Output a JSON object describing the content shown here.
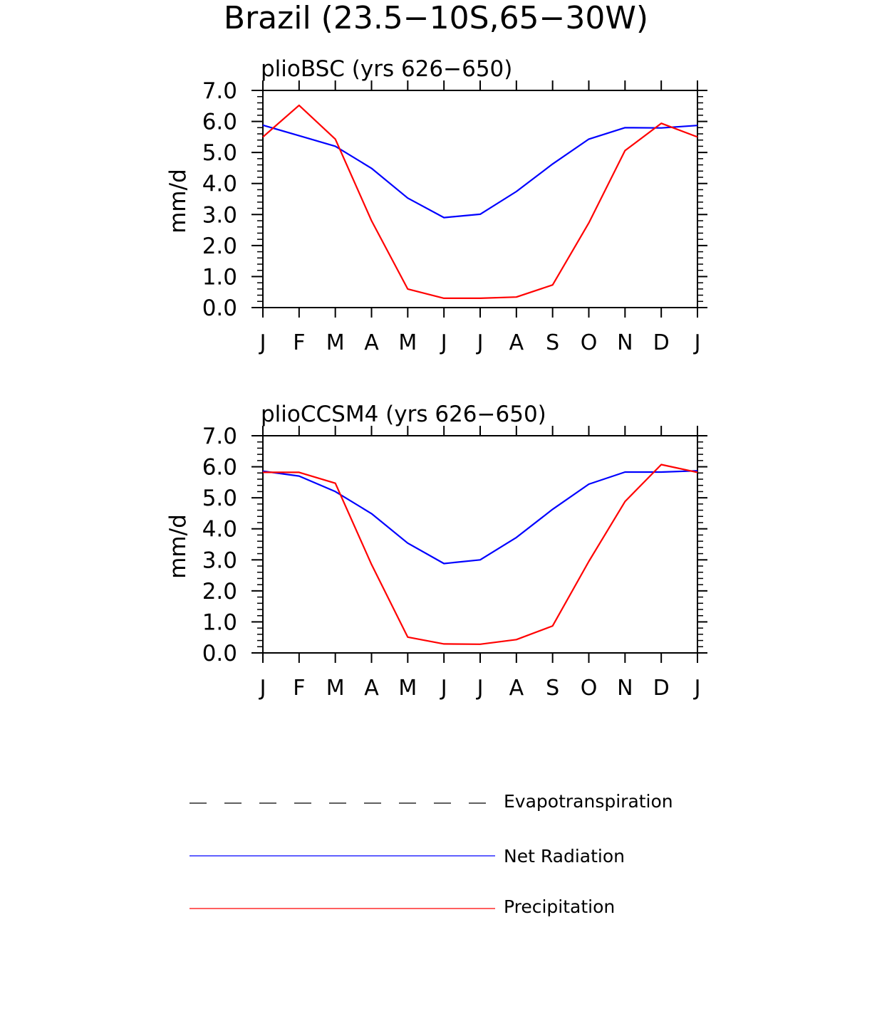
{
  "page_title": "Brazil (23.5−10S,65−30W)",
  "colors": {
    "net_radiation": "#0000ff",
    "precipitation": "#ff0000",
    "evapotranspiration": "#000000"
  },
  "legend": {
    "items": [
      {
        "label": "Evapotranspiration",
        "style": "dashed",
        "color": "#000000"
      },
      {
        "label": "Net Radiation",
        "style": "solid",
        "color": "#0000ff"
      },
      {
        "label": "Precipitation",
        "style": "solid",
        "color": "#ff0000"
      }
    ]
  },
  "chart_data": [
    {
      "type": "line",
      "title": "plioBSC (yrs 626−650)",
      "ylabel": "mm/d",
      "xlabel": "",
      "categories": [
        "J",
        "F",
        "M",
        "A",
        "M",
        "J",
        "J",
        "A",
        "S",
        "O",
        "N",
        "D",
        "J"
      ],
      "ylim": [
        0,
        7
      ],
      "ytick_labels": [
        "0.0",
        "1.0",
        "2.0",
        "3.0",
        "4.0",
        "5.0",
        "6.0",
        "7.0"
      ],
      "series": [
        {
          "name": "Net Radiation",
          "color": "#0000ff",
          "values": [
            5.88,
            5.54,
            5.2,
            4.49,
            3.53,
            2.9,
            3.01,
            3.74,
            4.63,
            5.43,
            5.8,
            5.79,
            5.87
          ]
        },
        {
          "name": "Precipitation",
          "color": "#ff0000",
          "values": [
            5.5,
            6.52,
            5.43,
            2.8,
            0.6,
            0.3,
            0.3,
            0.34,
            0.73,
            2.73,
            5.06,
            5.94,
            5.5
          ]
        }
      ]
    },
    {
      "type": "line",
      "title": "plioCCSM4 (yrs 626−650)",
      "ylabel": "mm/d",
      "xlabel": "",
      "categories": [
        "J",
        "F",
        "M",
        "A",
        "M",
        "J",
        "J",
        "A",
        "S",
        "O",
        "N",
        "D",
        "J"
      ],
      "ylim": [
        0,
        7
      ],
      "ytick_labels": [
        "0.0",
        "1.0",
        "2.0",
        "3.0",
        "4.0",
        "5.0",
        "6.0",
        "7.0"
      ],
      "series": [
        {
          "name": "Net Radiation",
          "color": "#0000ff",
          "values": [
            5.86,
            5.7,
            5.2,
            4.49,
            3.54,
            2.88,
            3.0,
            3.72,
            4.63,
            5.44,
            5.83,
            5.83,
            5.87
          ]
        },
        {
          "name": "Precipitation",
          "color": "#ff0000",
          "values": [
            5.82,
            5.82,
            5.47,
            2.85,
            0.51,
            0.29,
            0.28,
            0.43,
            0.87,
            2.95,
            4.88,
            6.07,
            5.82
          ]
        }
      ]
    }
  ]
}
